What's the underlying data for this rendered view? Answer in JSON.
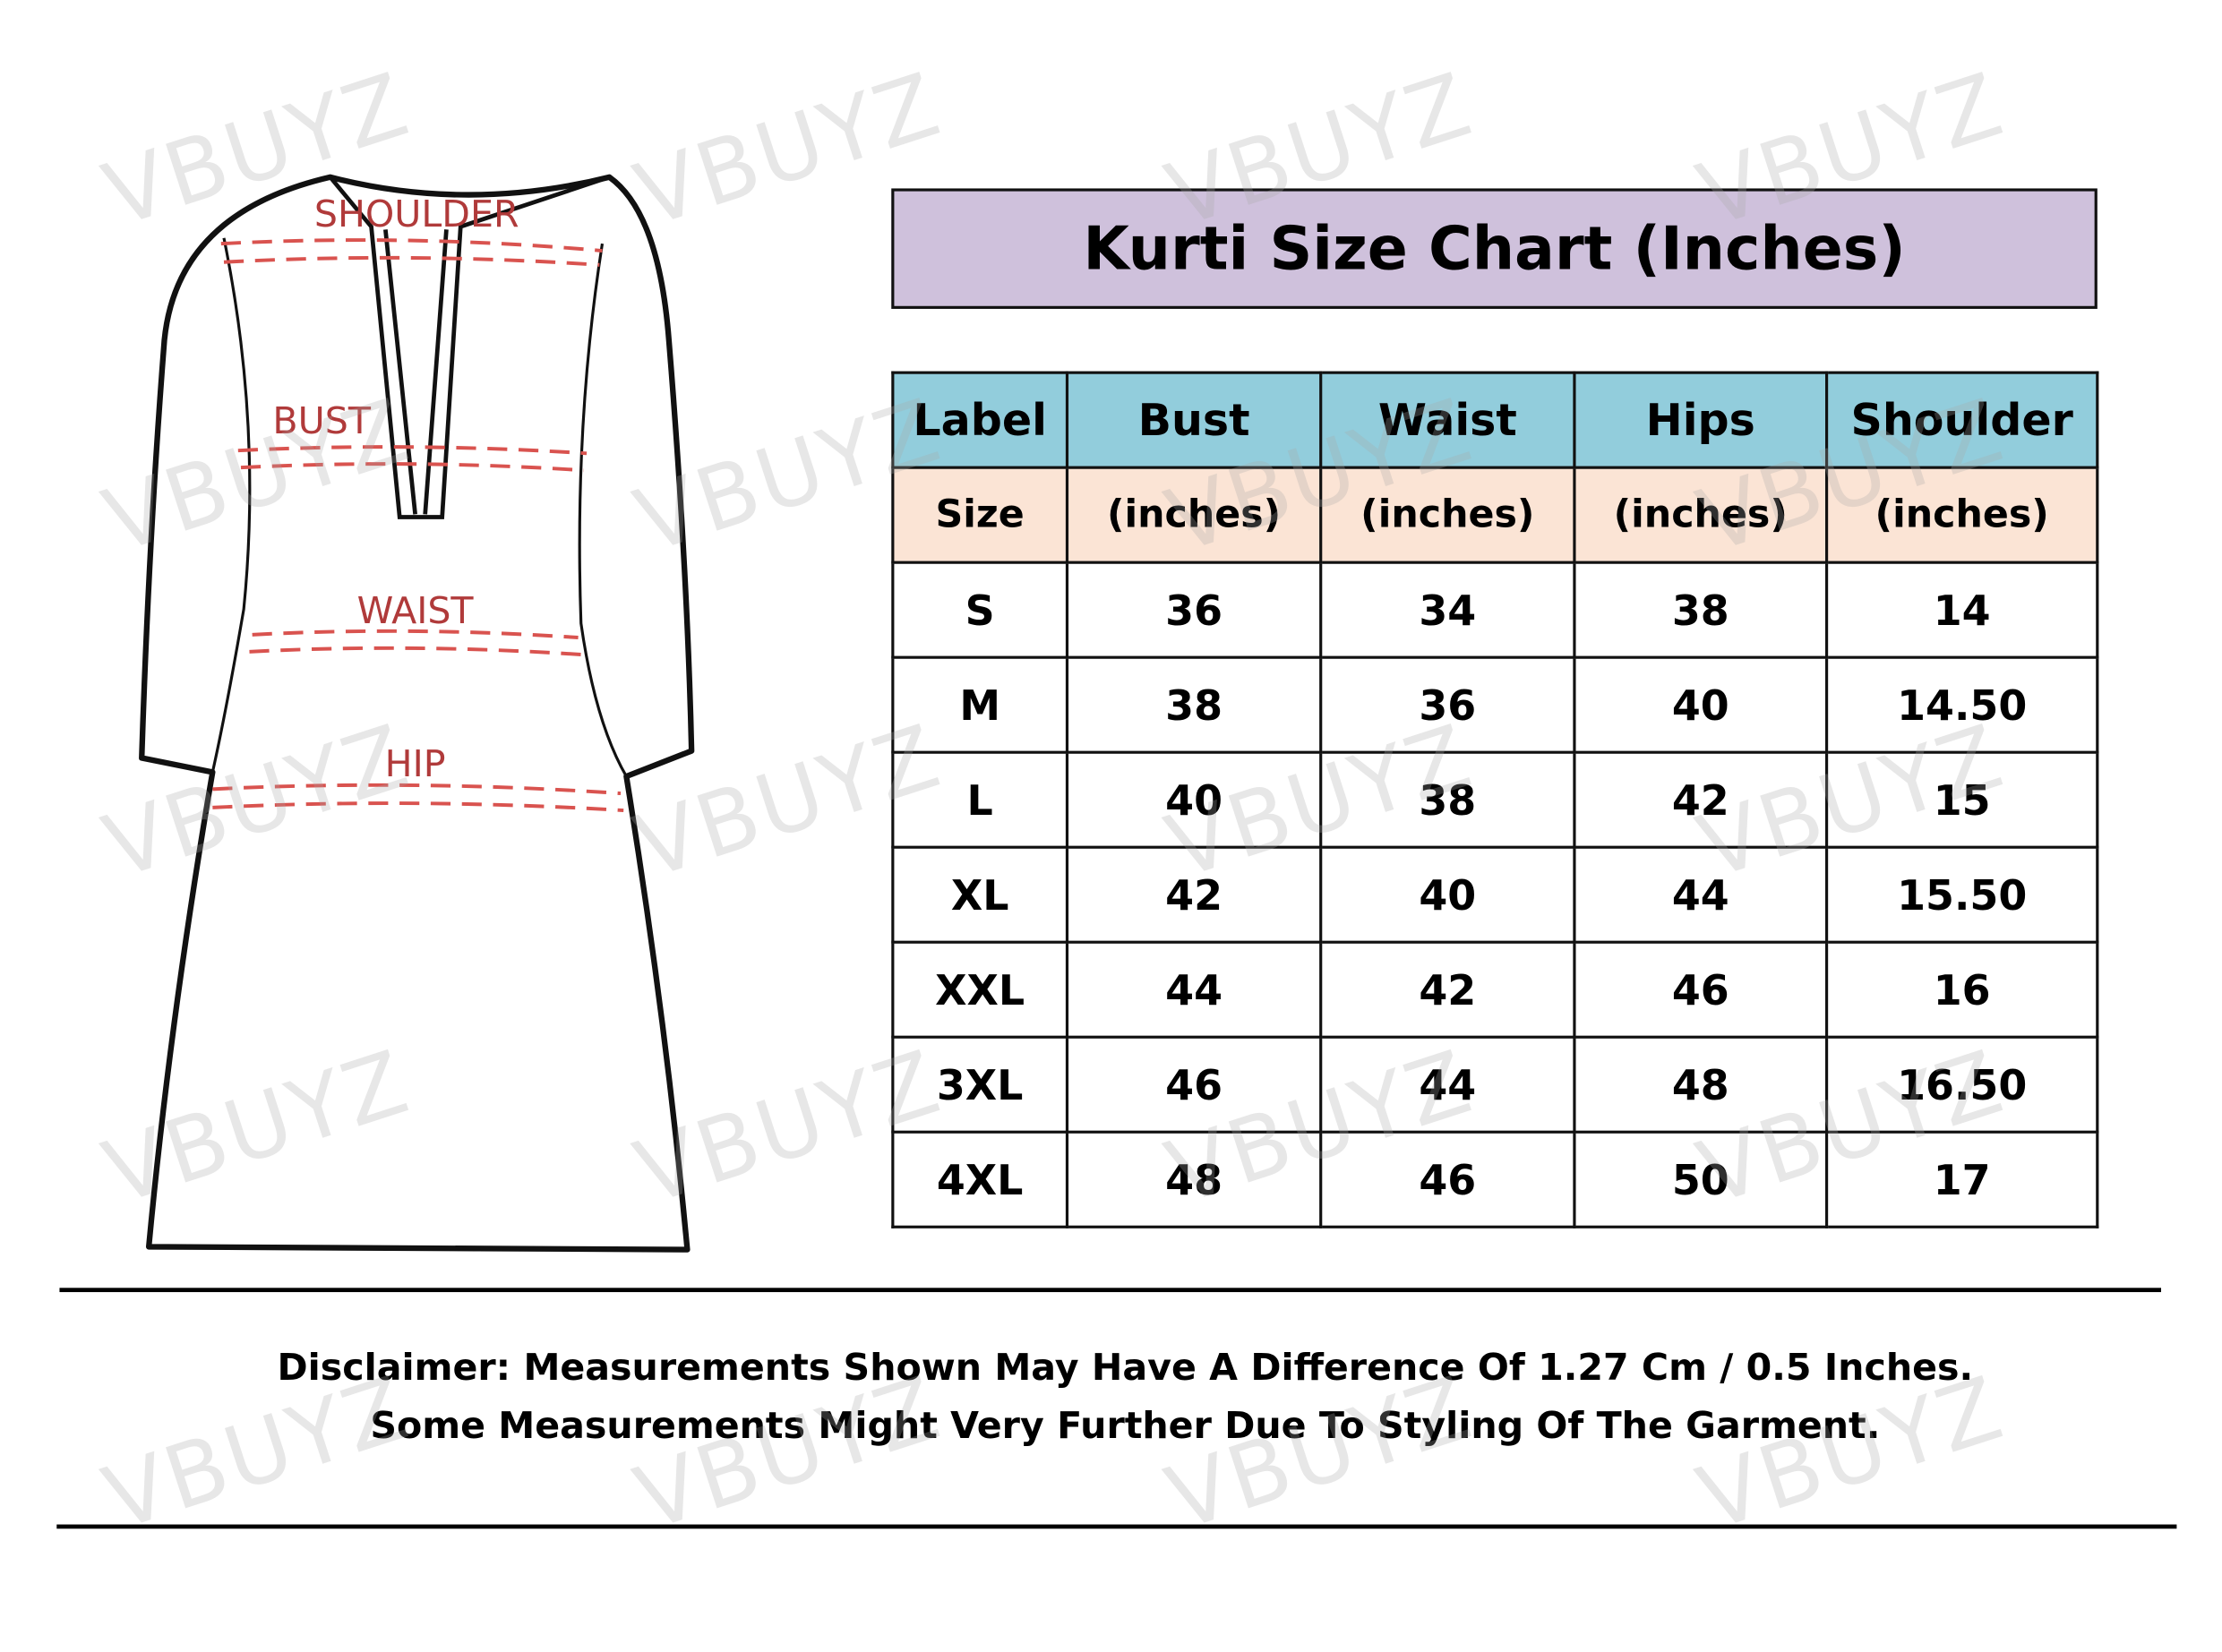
{
  "watermark": "VBUYZ",
  "diagram": {
    "labels": {
      "shoulder": "SHOULDER",
      "bust": "BUST",
      "waist": "WAIST",
      "hip": "HIP"
    },
    "measure_line_color": "#d9534f",
    "label_color": "#b03a3a"
  },
  "title": "Kurti Size Chart (Inches)",
  "colors": {
    "title_bg": "#cfc1dc",
    "header_bg": "#92cddc",
    "subheader_bg": "#fbe4d5"
  },
  "table": {
    "headers": [
      "Label",
      "Bust",
      "Waist",
      "Hips",
      "Shoulder"
    ],
    "subheaders": [
      "Size",
      "(inches)",
      "(inches)",
      "(inches)",
      "(inches)"
    ],
    "rows": [
      [
        "S",
        "36",
        "34",
        "38",
        "14"
      ],
      [
        "M",
        "38",
        "36",
        "40",
        "14.50"
      ],
      [
        "L",
        "40",
        "38",
        "42",
        "15"
      ],
      [
        "XL",
        "42",
        "40",
        "44",
        "15.50"
      ],
      [
        "XXL",
        "44",
        "42",
        "46",
        "16"
      ],
      [
        "3XL",
        "46",
        "44",
        "48",
        "16.50"
      ],
      [
        "4XL",
        "48",
        "46",
        "50",
        "17"
      ]
    ]
  },
  "disclaimer": {
    "line1": "Disclaimer: Measurements Shown May Have A Difference Of 1.27 Cm / 0.5 Inches.",
    "line2": "Some Measurements Might Very Further Due To Styling Of The Garment."
  }
}
